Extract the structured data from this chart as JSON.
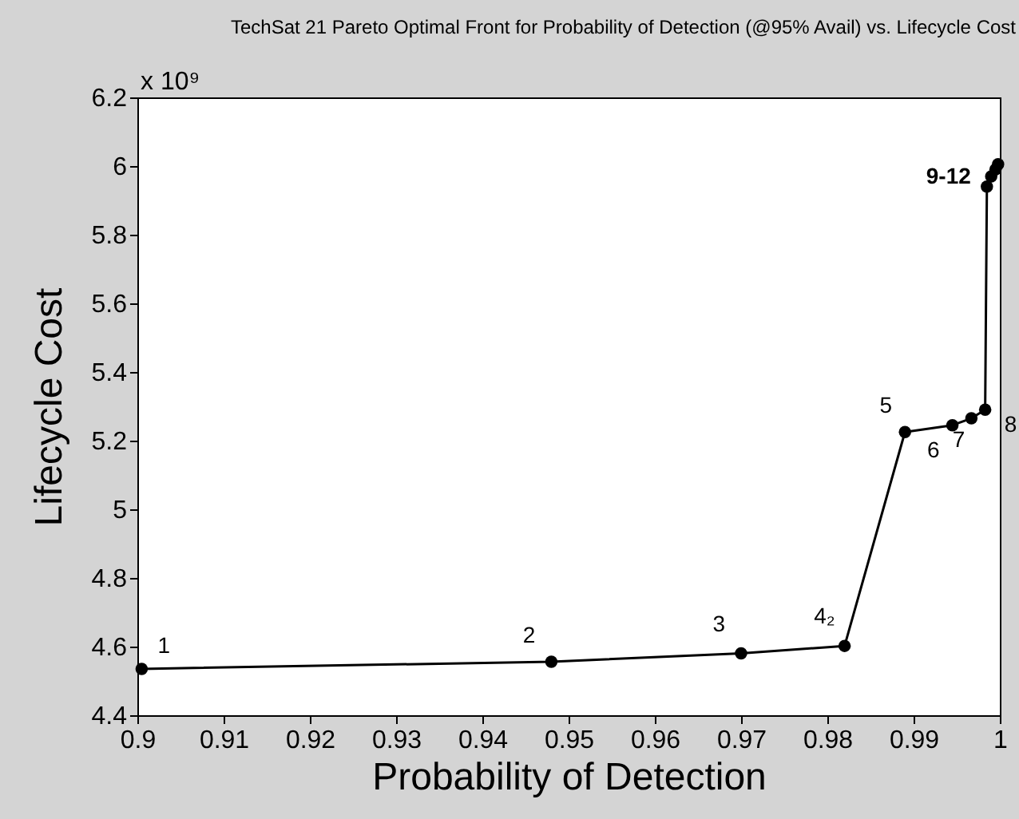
{
  "chart_data": {
    "type": "line",
    "title": "TechSat 21 Pareto Optimal Front for Probability of Detection (@95% Avail) vs. Lifecycle Cost",
    "xlabel": "Probability of Detection",
    "ylabel": "Lifecycle Cost",
    "x": [
      0.9005,
      0.948,
      0.97,
      0.982,
      0.989,
      0.9945,
      0.9967,
      0.9983,
      0.9985,
      0.999,
      0.9995,
      0.9998
    ],
    "series": [
      {
        "color": "#000000",
        "values": [
          4.535,
          4.556,
          4.58,
          4.602,
          5.225,
          5.245,
          5.265,
          5.29,
          5.94,
          5.97,
          5.99,
          6.005
        ]
      }
    ],
    "marker": "circle",
    "line_style": "solid",
    "xlim": [
      0.9,
      1.0
    ],
    "xticks": [
      0.9,
      0.91,
      0.92,
      0.93,
      0.94,
      0.95,
      0.96,
      0.97,
      0.98,
      0.99,
      1
    ],
    "ylim": [
      4.4,
      6.2
    ],
    "yticks": [
      4.4,
      4.6,
      4.8,
      5,
      5.2,
      5.4,
      5.6,
      5.8,
      6,
      6.2
    ],
    "grid": false,
    "annotations": [
      "x 10⁹",
      {
        "text": "1",
        "x": 0.9005,
        "y": 4.535
      },
      {
        "text": "2",
        "x": 0.948,
        "y": 4.556
      },
      {
        "text": "3",
        "x": 0.97,
        "y": 4.58
      },
      {
        "text": "4₂",
        "x": 0.982,
        "y": 4.602
      },
      {
        "text": "5",
        "x": 0.989,
        "y": 5.225
      },
      {
        "text": "6",
        "x": 0.9945,
        "y": 5.245
      },
      {
        "text": "7",
        "x": 0.9967,
        "y": 5.265
      },
      {
        "text": "8",
        "x": 0.9983,
        "y": 5.29
      },
      {
        "text": "9-12",
        "x": 0.9985,
        "y": 5.94
      }
    ]
  }
}
